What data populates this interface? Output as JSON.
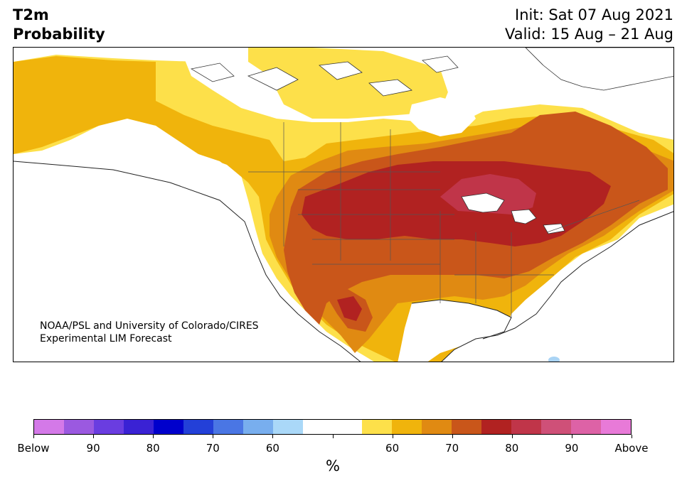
{
  "header": {
    "variable": "T2m",
    "field": "Probability",
    "init": "Init: Sat 07 Aug 2021",
    "valid": "Valid: 15 Aug – 21 Aug"
  },
  "map": {
    "credit_line1": "NOAA/PSL and University of Colorado/CIRES",
    "credit_line2": "Experimental LIM Forecast",
    "region": "North America",
    "features": [
      "coastlines",
      "state-boundaries",
      "country-boundaries",
      "probability-shading"
    ],
    "shading_colors": {
      "above_55": "#fde04a",
      "above_60": "#f0b40c",
      "above_65": "#e08a12",
      "above_70": "#c9561a",
      "above_75": "#b12221",
      "above_80": "#c03549",
      "below_light": "#aad4f5"
    }
  },
  "colorbar": {
    "colors": [
      "#d479e8",
      "#9b59e0",
      "#6a3de0",
      "#3a22d4",
      "#0000cc",
      "#2340d8",
      "#4a76e4",
      "#78aeee",
      "#aad8f8",
      "#ffffff",
      "#ffffff",
      "#fde04a",
      "#f0b40c",
      "#e08a12",
      "#c9561a",
      "#b12221",
      "#c03549",
      "#cf5078",
      "#dd62a6",
      "#e87ad8"
    ],
    "tick_labels": [
      "Below",
      "90",
      "80",
      "70",
      "60",
      "",
      "60",
      "70",
      "80",
      "90",
      "Above"
    ],
    "units": "%"
  }
}
